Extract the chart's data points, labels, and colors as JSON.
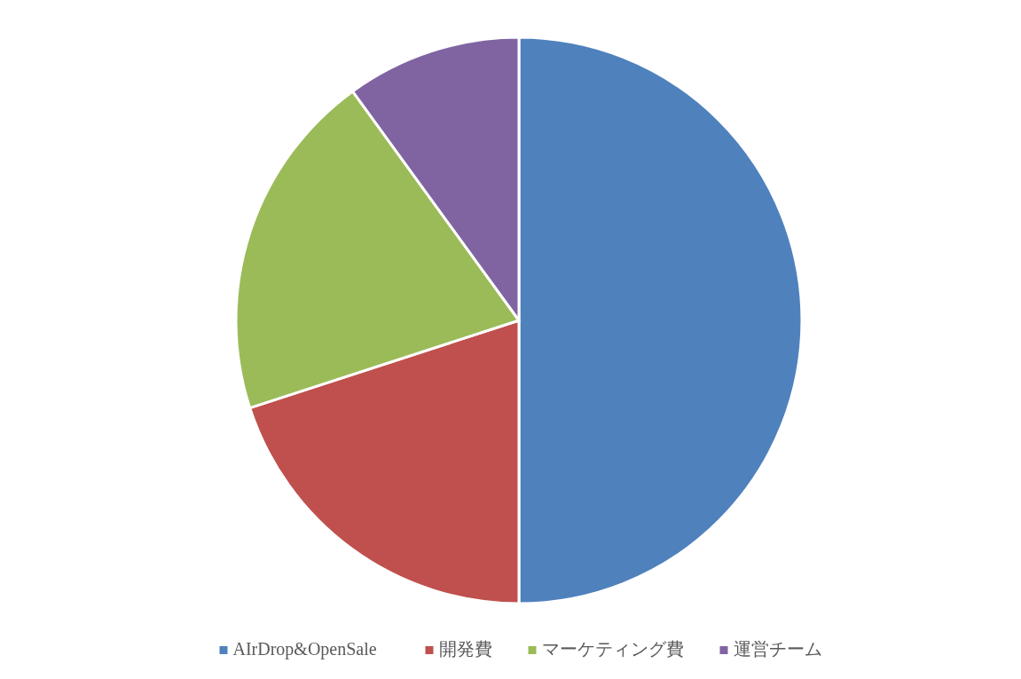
{
  "chart_data": {
    "type": "pie",
    "categories": [
      "AIrDrop&OpenSale",
      "開発費",
      "マーケティング費",
      "運営チーム"
    ],
    "values": [
      50,
      20,
      20,
      10
    ],
    "colors": [
      "#4f81bd",
      "#c0504d",
      "#9bbb59",
      "#8064a2"
    ],
    "legend": "bottom"
  }
}
